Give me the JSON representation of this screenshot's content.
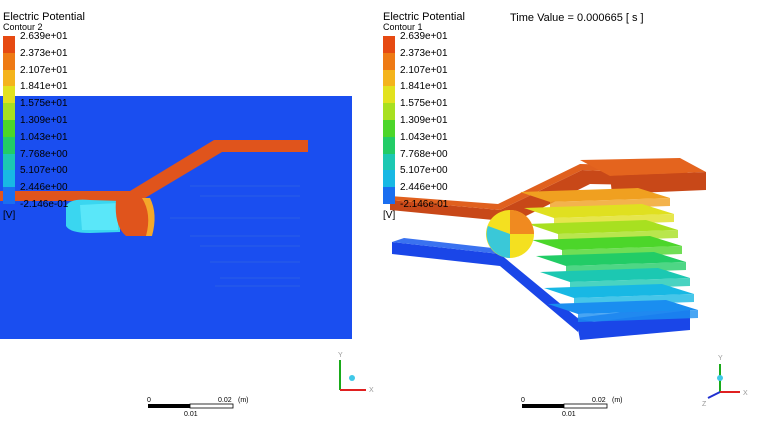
{
  "left_view": {
    "legend": {
      "title": "Electric Potential",
      "subtitle": "Contour 2",
      "labels": [
        "2.639e+01",
        "2.373e+01",
        "2.107e+01",
        "1.841e+01",
        "1.575e+01",
        "1.309e+01",
        "1.043e+01",
        "7.768e+00",
        "5.107e+00",
        "2.446e+00",
        "-2.146e-01"
      ],
      "unit": "[V]"
    },
    "scale_bar": {
      "start": "0",
      "mid": "0.01",
      "end": "0.02",
      "unit": "(m)"
    },
    "axes": {
      "y": "Y",
      "x": "X"
    }
  },
  "right_view": {
    "legend": {
      "title": "Electric Potential",
      "subtitle": "Contour 1",
      "labels": [
        "2.639e+01",
        "2.373e+01",
        "2.107e+01",
        "1.841e+01",
        "1.575e+01",
        "1.309e+01",
        "1.043e+01",
        "7.768e+00",
        "5.107e+00",
        "2.446e+00",
        "-2.146e-01"
      ],
      "unit": "[V]"
    },
    "time_value": "Time Value = 0.000665 [ s ]",
    "scale_bar": {
      "start": "0",
      "mid": "0.01",
      "end": "0.02",
      "unit": "(m)"
    },
    "axes": {
      "y": "Y",
      "x": "X",
      "z": "Z"
    }
  },
  "colors": {
    "levels": [
      "#e64a12",
      "#ee7a14",
      "#f4b41c",
      "#e2e21e",
      "#a8e020",
      "#4cd62a",
      "#22cc66",
      "#1cc8b2",
      "#18b8e4",
      "#1a6ef0",
      "#1a3cf0"
    ],
    "background_field": "#1a4ef0",
    "conductor_high": "#d9501c"
  }
}
